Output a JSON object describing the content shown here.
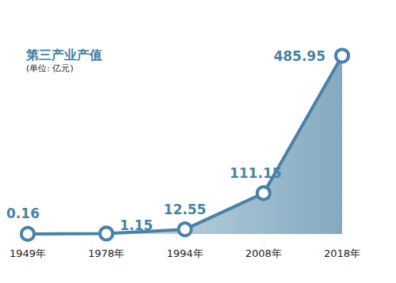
{
  "chart_data": {
    "type": "line",
    "title": "第三产业产值",
    "subtitle": "(单位: 亿元)",
    "categories": [
      "1949年",
      "1978年",
      "1994年",
      "2008年",
      "2018年"
    ],
    "values": [
      0.16,
      1.15,
      12.55,
      111.15,
      485.95
    ],
    "color": "#4a82a6",
    "marker": "circle",
    "ylim": [
      0,
      500
    ],
    "yticks": [
      0,
      500
    ],
    "grid": false,
    "data_labels": true,
    "tick_labels": "x"
  }
}
